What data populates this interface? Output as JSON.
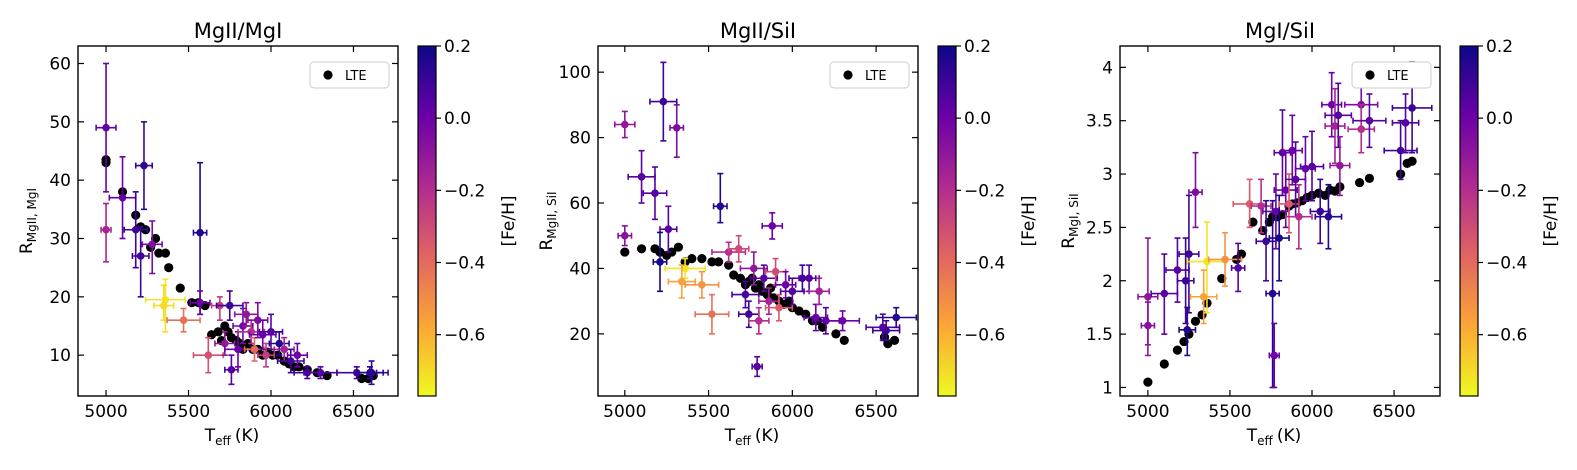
{
  "colorbar": {
    "label": "[Fe/H]",
    "ticks": [
      0.2,
      0.0,
      -0.2,
      -0.4,
      -0.6
    ],
    "tick_labels": [
      "0.2",
      "0.0",
      "−0.2",
      "−0.4",
      "−0.6"
    ],
    "range": [
      -0.77,
      0.2
    ],
    "colors": [
      "#f0f921",
      "#fca636",
      "#e16462",
      "#b12a90",
      "#6a00a8",
      "#0d0887"
    ]
  },
  "chart_data": [
    {
      "type": "scatter",
      "title": "MgII/MgI",
      "xlabel_main": "T",
      "xlabel_sub": "eff",
      "xlabel_unit": "(K)",
      "ylabel_main": "R",
      "ylabel_sub": "MgII, MgI",
      "xlim": [
        4830,
        6770
      ],
      "ylim": [
        3,
        63
      ],
      "xticks": [
        5000,
        5500,
        6000,
        6500
      ],
      "yticks": [
        10,
        20,
        30,
        40,
        50,
        60
      ],
      "legend": "LTE",
      "lte": [
        [
          5000,
          43
        ],
        [
          5000,
          43.5
        ],
        [
          5100,
          38
        ],
        [
          5180,
          34
        ],
        [
          5210,
          32
        ],
        [
          5240,
          31.5
        ],
        [
          5270,
          28.5
        ],
        [
          5300,
          30
        ],
        [
          5320,
          27.5
        ],
        [
          5360,
          27.5
        ],
        [
          5380,
          25
        ],
        [
          5450,
          21.5
        ],
        [
          5520,
          19
        ],
        [
          5560,
          19
        ],
        [
          5600,
          18.5
        ],
        [
          5640,
          13.5
        ],
        [
          5680,
          14
        ],
        [
          5700,
          12.5
        ],
        [
          5720,
          15
        ],
        [
          5740,
          14
        ],
        [
          5760,
          13
        ],
        [
          5790,
          12.5
        ],
        [
          5810,
          12
        ],
        [
          5830,
          11
        ],
        [
          5860,
          12
        ],
        [
          5890,
          11
        ],
        [
          5920,
          11
        ],
        [
          5950,
          10
        ],
        [
          5980,
          10.5
        ],
        [
          6010,
          10
        ],
        [
          6040,
          10
        ],
        [
          6080,
          9
        ],
        [
          6110,
          8.5
        ],
        [
          6140,
          8
        ],
        [
          6170,
          8
        ],
        [
          6220,
          7.5
        ],
        [
          6280,
          7
        ],
        [
          6340,
          6.5
        ],
        [
          6550,
          6
        ],
        [
          6590,
          6
        ],
        [
          6620,
          6.5
        ]
      ],
      "nlte": [
        [
          5000,
          49,
          0.02,
          60,
          38,
          60
        ],
        [
          5000,
          31.5,
          -0.16,
          30,
          26,
          36
        ],
        [
          5100,
          37,
          0.02,
          80,
          30,
          44
        ],
        [
          5180,
          31.5,
          0.1,
          70,
          25,
          38
        ],
        [
          5230,
          42.5,
          0.12,
          50,
          35,
          50
        ],
        [
          5210,
          27,
          0.1,
          50,
          20,
          32
        ],
        [
          5280,
          29,
          -0.05,
          60,
          24,
          33
        ],
        [
          5360,
          19.5,
          -0.72,
          120,
          14,
          23
        ],
        [
          5350,
          18.5,
          -0.7,
          60,
          16,
          22
        ],
        [
          5470,
          16,
          -0.42,
          100,
          14,
          18
        ],
        [
          5570,
          31,
          0.16,
          40,
          17,
          43
        ],
        [
          5570,
          19,
          0.0,
          60,
          17,
          21
        ],
        [
          5620,
          10,
          -0.32,
          90,
          7,
          13
        ],
        [
          5690,
          18.5,
          -0.25,
          50,
          16,
          20
        ],
        [
          5750,
          18.5,
          0.1,
          80,
          16,
          21
        ],
        [
          5720,
          12,
          -0.1,
          60,
          10,
          14
        ],
        [
          5760,
          7.5,
          0.05,
          40,
          5,
          10
        ],
        [
          5800,
          11,
          0.0,
          80,
          8,
          14
        ],
        [
          5830,
          15,
          -0.02,
          60,
          12,
          18
        ],
        [
          5850,
          17,
          -0.1,
          70,
          15,
          19
        ],
        [
          5880,
          14,
          -0.2,
          80,
          12,
          16
        ],
        [
          5900,
          11,
          -0.4,
          60,
          9,
          13
        ],
        [
          5920,
          16,
          -0.05,
          60,
          13,
          19
        ],
        [
          5950,
          13.5,
          0.0,
          80,
          11,
          16
        ],
        [
          5970,
          10,
          -0.25,
          50,
          8,
          12
        ],
        [
          6000,
          14,
          0.05,
          70,
          11,
          17
        ],
        [
          6050,
          12,
          0.15,
          60,
          10,
          14
        ],
        [
          6080,
          11,
          -0.15,
          60,
          9,
          13
        ],
        [
          6120,
          9,
          0.1,
          80,
          7,
          11
        ],
        [
          6160,
          10,
          0.0,
          60,
          8,
          12
        ],
        [
          6220,
          7,
          0.1,
          80,
          6,
          8
        ],
        [
          6300,
          7,
          0.05,
          100,
          6,
          8
        ],
        [
          6520,
          7,
          0.1,
          120,
          6,
          8
        ],
        [
          6610,
          7,
          0.1,
          100,
          5,
          9
        ],
        [
          6600,
          7,
          0.15,
          80,
          6,
          8
        ]
      ]
    },
    {
      "type": "scatter",
      "title": "MgII/SiI",
      "xlabel_main": "T",
      "xlabel_sub": "eff",
      "xlabel_unit": "(K)",
      "ylabel_main": "R",
      "ylabel_sub": "MgII, SiI",
      "xlim": [
        4840,
        6750
      ],
      "ylim": [
        1,
        108
      ],
      "xticks": [
        5000,
        5500,
        6000,
        6500
      ],
      "yticks": [
        20,
        40,
        60,
        80,
        100
      ],
      "legend": "LTE",
      "lte": [
        [
          5000,
          45
        ],
        [
          5100,
          46
        ],
        [
          5180,
          46
        ],
        [
          5210,
          45
        ],
        [
          5250,
          44
        ],
        [
          5280,
          45
        ],
        [
          5320,
          46.5
        ],
        [
          5360,
          42
        ],
        [
          5400,
          43
        ],
        [
          5460,
          43
        ],
        [
          5520,
          42
        ],
        [
          5560,
          42
        ],
        [
          5620,
          41
        ],
        [
          5650,
          38
        ],
        [
          5690,
          37
        ],
        [
          5720,
          35
        ],
        [
          5740,
          36
        ],
        [
          5760,
          37
        ],
        [
          5780,
          34
        ],
        [
          5800,
          35
        ],
        [
          5820,
          33
        ],
        [
          5850,
          32
        ],
        [
          5870,
          34
        ],
        [
          5890,
          31
        ],
        [
          5920,
          30
        ],
        [
          5950,
          29
        ],
        [
          5980,
          30
        ],
        [
          6000,
          28
        ],
        [
          6040,
          27
        ],
        [
          6080,
          26
        ],
        [
          6120,
          24
        ],
        [
          6150,
          24
        ],
        [
          6180,
          22
        ],
        [
          6260,
          20
        ],
        [
          6310,
          18
        ],
        [
          6550,
          19
        ],
        [
          6570,
          17
        ],
        [
          6610,
          18
        ]
      ],
      "nlte": [
        [
          5000,
          84,
          -0.1,
          60,
          80,
          88
        ],
        [
          5000,
          50,
          -0.08,
          40,
          47,
          53
        ],
        [
          5100,
          68,
          0.04,
          80,
          60,
          76
        ],
        [
          5180,
          63,
          0.05,
          70,
          55,
          71
        ],
        [
          5230,
          91,
          0.1,
          80,
          79,
          103
        ],
        [
          5260,
          52,
          0.05,
          50,
          45,
          59
        ],
        [
          5310,
          83,
          -0.05,
          40,
          74,
          90
        ],
        [
          5210,
          42,
          0.18,
          40,
          33,
          51
        ],
        [
          5360,
          40,
          -0.72,
          120,
          37,
          43
        ],
        [
          5340,
          36,
          -0.56,
          80,
          31,
          41
        ],
        [
          5460,
          35,
          -0.52,
          100,
          31,
          39
        ],
        [
          5570,
          59,
          0.15,
          40,
          54,
          69
        ],
        [
          5520,
          26,
          -0.42,
          100,
          20,
          32
        ],
        [
          5620,
          45,
          -0.2,
          100,
          42,
          48
        ],
        [
          5680,
          46,
          -0.3,
          60,
          42,
          50
        ],
        [
          5720,
          32,
          0.08,
          80,
          28,
          36
        ],
        [
          5740,
          26,
          0.1,
          60,
          22,
          30
        ],
        [
          5770,
          40,
          -0.1,
          80,
          35,
          45
        ],
        [
          5800,
          24,
          -0.2,
          60,
          20,
          28
        ],
        [
          5790,
          10,
          0.05,
          30,
          7,
          13
        ],
        [
          5830,
          37,
          0.05,
          80,
          33,
          41
        ],
        [
          5860,
          30,
          -0.15,
          60,
          26,
          34
        ],
        [
          5880,
          53,
          0.0,
          60,
          49,
          57
        ],
        [
          5900,
          39,
          -0.3,
          60,
          35,
          43
        ],
        [
          5920,
          28,
          -0.35,
          80,
          24,
          32
        ],
        [
          5960,
          35,
          0.0,
          60,
          31,
          39
        ],
        [
          6000,
          33,
          0.05,
          70,
          29,
          37
        ],
        [
          6060,
          37,
          0.1,
          80,
          33,
          41
        ],
        [
          6100,
          37,
          0.05,
          60,
          33,
          41
        ],
        [
          6140,
          25,
          0.0,
          70,
          21,
          29
        ],
        [
          6160,
          33,
          -0.15,
          60,
          29,
          37
        ],
        [
          6200,
          24,
          0.05,
          80,
          20,
          28
        ],
        [
          6300,
          24,
          0.0,
          100,
          21,
          27
        ],
        [
          6540,
          22,
          0.05,
          100,
          18,
          26
        ],
        [
          6560,
          21,
          0.1,
          80,
          18,
          24
        ],
        [
          6620,
          25,
          0.15,
          120,
          22,
          28
        ]
      ]
    },
    {
      "type": "scatter",
      "title": "MgI/SiI",
      "xlabel_main": "T",
      "xlabel_sub": "eff",
      "xlabel_unit": "(K)",
      "ylabel_main": "R",
      "ylabel_sub": "MgI, SiI",
      "xlim": [
        4830,
        6780
      ],
      "ylim": [
        0.92,
        4.2
      ],
      "xticks": [
        5000,
        5500,
        6000,
        6500
      ],
      "yticks": [
        1.0,
        1.5,
        2.0,
        2.5,
        3.0,
        3.5,
        4.0
      ],
      "legend": "LTE",
      "lte": [
        [
          5000,
          1.05
        ],
        [
          5100,
          1.22
        ],
        [
          5180,
          1.35
        ],
        [
          5220,
          1.43
        ],
        [
          5250,
          1.5
        ],
        [
          5290,
          1.62
        ],
        [
          5330,
          1.68
        ],
        [
          5360,
          1.79
        ],
        [
          5450,
          2.02
        ],
        [
          5540,
          2.2
        ],
        [
          5570,
          2.25
        ],
        [
          5640,
          2.55
        ],
        [
          5700,
          2.47
        ],
        [
          5740,
          2.55
        ],
        [
          5760,
          2.6
        ],
        [
          5790,
          2.6
        ],
        [
          5820,
          2.62
        ],
        [
          5860,
          2.7
        ],
        [
          5880,
          2.72
        ],
        [
          5910,
          2.73
        ],
        [
          5940,
          2.75
        ],
        [
          5970,
          2.78
        ],
        [
          6000,
          2.8
        ],
        [
          6040,
          2.82
        ],
        [
          6080,
          2.8
        ],
        [
          6110,
          2.85
        ],
        [
          6140,
          2.84
        ],
        [
          6170,
          2.88
        ],
        [
          6290,
          2.92
        ],
        [
          6350,
          2.96
        ],
        [
          6540,
          3.0
        ],
        [
          6580,
          3.1
        ],
        [
          6610,
          3.12
        ]
      ],
      "nlte": [
        [
          5000,
          1.85,
          -0.1,
          60,
          1.3,
          2.4
        ],
        [
          5000,
          1.58,
          -0.08,
          40,
          1.4,
          1.8
        ],
        [
          5100,
          1.88,
          0.04,
          80,
          1.5,
          2.25
        ],
        [
          5180,
          2.1,
          0.05,
          70,
          1.8,
          2.4
        ],
        [
          5240,
          1.54,
          0.15,
          50,
          1.3,
          1.75
        ],
        [
          5250,
          2.25,
          0.1,
          60,
          1.7,
          2.8
        ],
        [
          5290,
          2.83,
          -0.05,
          40,
          2.5,
          3.2
        ],
        [
          5230,
          2.0,
          0.1,
          50,
          1.6,
          2.4
        ],
        [
          5360,
          2.18,
          -0.72,
          120,
          1.7,
          2.55
        ],
        [
          5340,
          1.85,
          -0.56,
          80,
          1.6,
          2.1
        ],
        [
          5470,
          2.2,
          -0.52,
          100,
          1.95,
          2.45
        ],
        [
          5550,
          2.12,
          0.05,
          40,
          1.9,
          2.35
        ],
        [
          5620,
          2.72,
          -0.35,
          100,
          2.5,
          2.95
        ],
        [
          5690,
          2.7,
          -0.2,
          60,
          2.45,
          2.95
        ],
        [
          5720,
          2.37,
          0.1,
          60,
          2.0,
          2.75
        ],
        [
          5760,
          1.88,
          0.15,
          40,
          1.0,
          2.75
        ],
        [
          5770,
          1.3,
          0.0,
          30,
          1.0,
          1.6
        ],
        [
          5780,
          2.65,
          0.0,
          80,
          2.3,
          3.0
        ],
        [
          5800,
          2.4,
          0.18,
          60,
          2.0,
          2.8
        ],
        [
          5820,
          3.2,
          0.05,
          50,
          2.8,
          3.6
        ],
        [
          5840,
          2.85,
          0.0,
          70,
          2.5,
          3.2
        ],
        [
          5860,
          2.72,
          -0.35,
          60,
          2.45,
          3.0
        ],
        [
          5880,
          3.22,
          0.0,
          60,
          2.9,
          3.55
        ],
        [
          5900,
          2.95,
          0.05,
          60,
          2.6,
          3.3
        ],
        [
          5920,
          2.6,
          -0.2,
          80,
          2.3,
          2.9
        ],
        [
          5960,
          3.05,
          0.0,
          60,
          2.75,
          3.35
        ],
        [
          6000,
          3.07,
          0.05,
          70,
          2.75,
          3.4
        ],
        [
          6050,
          2.65,
          0.1,
          60,
          2.35,
          2.95
        ],
        [
          6100,
          2.6,
          0.15,
          80,
          2.3,
          2.9
        ],
        [
          6120,
          3.65,
          0.0,
          60,
          3.35,
          3.95
        ],
        [
          6140,
          3.45,
          -0.15,
          60,
          3.1,
          3.8
        ],
        [
          6160,
          3.55,
          0.05,
          80,
          3.25,
          3.85
        ],
        [
          6170,
          3.08,
          -0.1,
          60,
          2.8,
          3.35
        ],
        [
          6300,
          3.65,
          -0.05,
          100,
          3.4,
          3.9
        ],
        [
          6300,
          3.42,
          -0.2,
          80,
          3.2,
          3.65
        ],
        [
          6350,
          3.5,
          0.05,
          100,
          3.25,
          3.75
        ],
        [
          6540,
          3.22,
          0.1,
          100,
          2.95,
          3.5
        ],
        [
          6570,
          3.48,
          0.05,
          80,
          3.2,
          3.75
        ],
        [
          6610,
          3.62,
          0.1,
          120,
          3.2,
          4.05
        ]
      ]
    }
  ]
}
